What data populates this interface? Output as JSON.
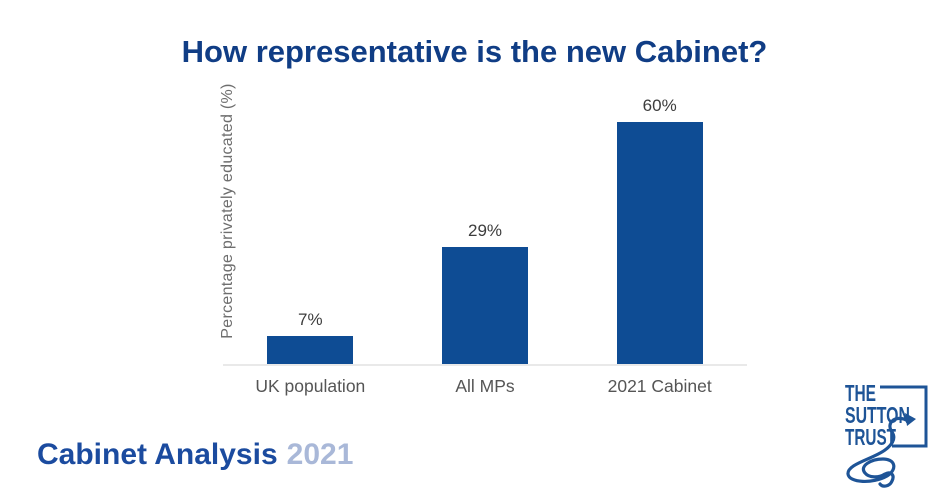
{
  "title": "How representative is the new Cabinet?",
  "chart_data": {
    "type": "bar",
    "categories": [
      "UK population",
      "All MPs",
      "2021 Cabinet"
    ],
    "values": [
      7,
      29,
      60
    ],
    "value_labels": [
      "7%",
      "29%",
      "60%"
    ],
    "title": "How representative is the new Cabinet?",
    "xlabel": "",
    "ylabel": "Percentage privately educated (%)",
    "ylim": [
      0,
      67
    ],
    "grid": false,
    "legend": false,
    "bar_color": "#0e4c94"
  },
  "footer": {
    "title": "Cabinet Analysis",
    "year": "2021"
  },
  "logo": {
    "line1": "THE",
    "line2": "SUTTON",
    "line3": "TRUST"
  },
  "colors": {
    "title": "#103d85",
    "bar": "#0e4c94",
    "value_label": "#3d3d3d",
    "category_label": "#555555",
    "axis_label": "#6e6e6e",
    "baseline": "#e9e9e9",
    "footer_title": "#1b4b9f",
    "footer_year": "#a9b8d8",
    "logo": "#1e5497"
  }
}
